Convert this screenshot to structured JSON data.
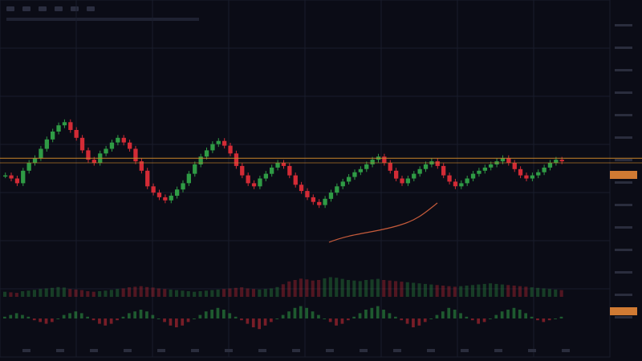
{
  "toolbar": {
    "icons": [
      "toolbar-icon",
      "toolbar-icon",
      "toolbar-icon",
      "toolbar-icon",
      "toolbar-icon",
      "toolbar-icon"
    ]
  },
  "colors": {
    "background": "#0b0c16",
    "up": "#2f9b45",
    "down": "#d32b36",
    "level_line": "#c9842a",
    "trend_curve": "#c65b3b",
    "grid": "#1a1d2c",
    "price_tag": "#d07a33"
  },
  "chart_data": {
    "type": "candlestick",
    "grid": true,
    "y_axis": "right",
    "price_range": [
      0,
      100
    ],
    "volume_range": [
      0,
      100
    ],
    "oscillator_range": [
      -1,
      1
    ],
    "horizontal_level": 61,
    "level_band": [
      60,
      63
    ],
    "closes": [
      52,
      50,
      47,
      55,
      60,
      63,
      69,
      75,
      80,
      84,
      86,
      81,
      76,
      68,
      62,
      60,
      66,
      69,
      73,
      76,
      73,
      69,
      61,
      55,
      45,
      41,
      38,
      36,
      39,
      43,
      47,
      53,
      59,
      64,
      68,
      72,
      74,
      71,
      66,
      58,
      52,
      47,
      45,
      50,
      53,
      57,
      60,
      58,
      52,
      46,
      42,
      38,
      35,
      33,
      37,
      41,
      45,
      48,
      51,
      54,
      56,
      59,
      62,
      64,
      60,
      55,
      50,
      47,
      50,
      53,
      56,
      59,
      61,
      58,
      52,
      48,
      45,
      47,
      50,
      53,
      55,
      57,
      59,
      61,
      63,
      60,
      56,
      52,
      50,
      52,
      54,
      57,
      60,
      62,
      61
    ],
    "volume": [
      18,
      16,
      14,
      20,
      22,
      25,
      28,
      30,
      32,
      35,
      33,
      28,
      26,
      24,
      20,
      18,
      20,
      22,
      25,
      28,
      30,
      34,
      36,
      38,
      35,
      33,
      30,
      28,
      26,
      24,
      22,
      20,
      18,
      20,
      22,
      24,
      26,
      28,
      30,
      32,
      34,
      30,
      28,
      26,
      28,
      30,
      35,
      45,
      55,
      60,
      65,
      62,
      58,
      60,
      66,
      70,
      68,
      64,
      60,
      58,
      56,
      60,
      62,
      64,
      60,
      58,
      56,
      54,
      52,
      50,
      48,
      46,
      44,
      42,
      40,
      38,
      36,
      38,
      40,
      42,
      44,
      46,
      48,
      46,
      44,
      42,
      40,
      38,
      36,
      34,
      32,
      30,
      28,
      26,
      24
    ],
    "oscillator": [
      0.1,
      0.2,
      0.3,
      0.2,
      0.1,
      -0.1,
      -0.2,
      -0.3,
      -0.2,
      0.0,
      0.2,
      0.3,
      0.4,
      0.3,
      0.1,
      -0.1,
      -0.3,
      -0.4,
      -0.3,
      -0.1,
      0.1,
      0.3,
      0.4,
      0.5,
      0.4,
      0.2,
      0.0,
      -0.2,
      -0.4,
      -0.5,
      -0.4,
      -0.2,
      0.0,
      0.2,
      0.4,
      0.5,
      0.6,
      0.5,
      0.3,
      0.1,
      -0.1,
      -0.3,
      -0.5,
      -0.6,
      -0.4,
      -0.2,
      0.0,
      0.2,
      0.4,
      0.6,
      0.7,
      0.6,
      0.4,
      0.2,
      0.0,
      -0.2,
      -0.4,
      -0.3,
      -0.1,
      0.1,
      0.3,
      0.5,
      0.6,
      0.7,
      0.5,
      0.3,
      0.1,
      -0.1,
      -0.3,
      -0.5,
      -0.4,
      -0.2,
      0.0,
      0.2,
      0.4,
      0.6,
      0.5,
      0.3,
      0.1,
      -0.1,
      -0.3,
      -0.2,
      0.0,
      0.2,
      0.4,
      0.5,
      0.6,
      0.5,
      0.3,
      0.1,
      -0.1,
      -0.2,
      -0.1,
      0.0,
      0.1
    ]
  }
}
